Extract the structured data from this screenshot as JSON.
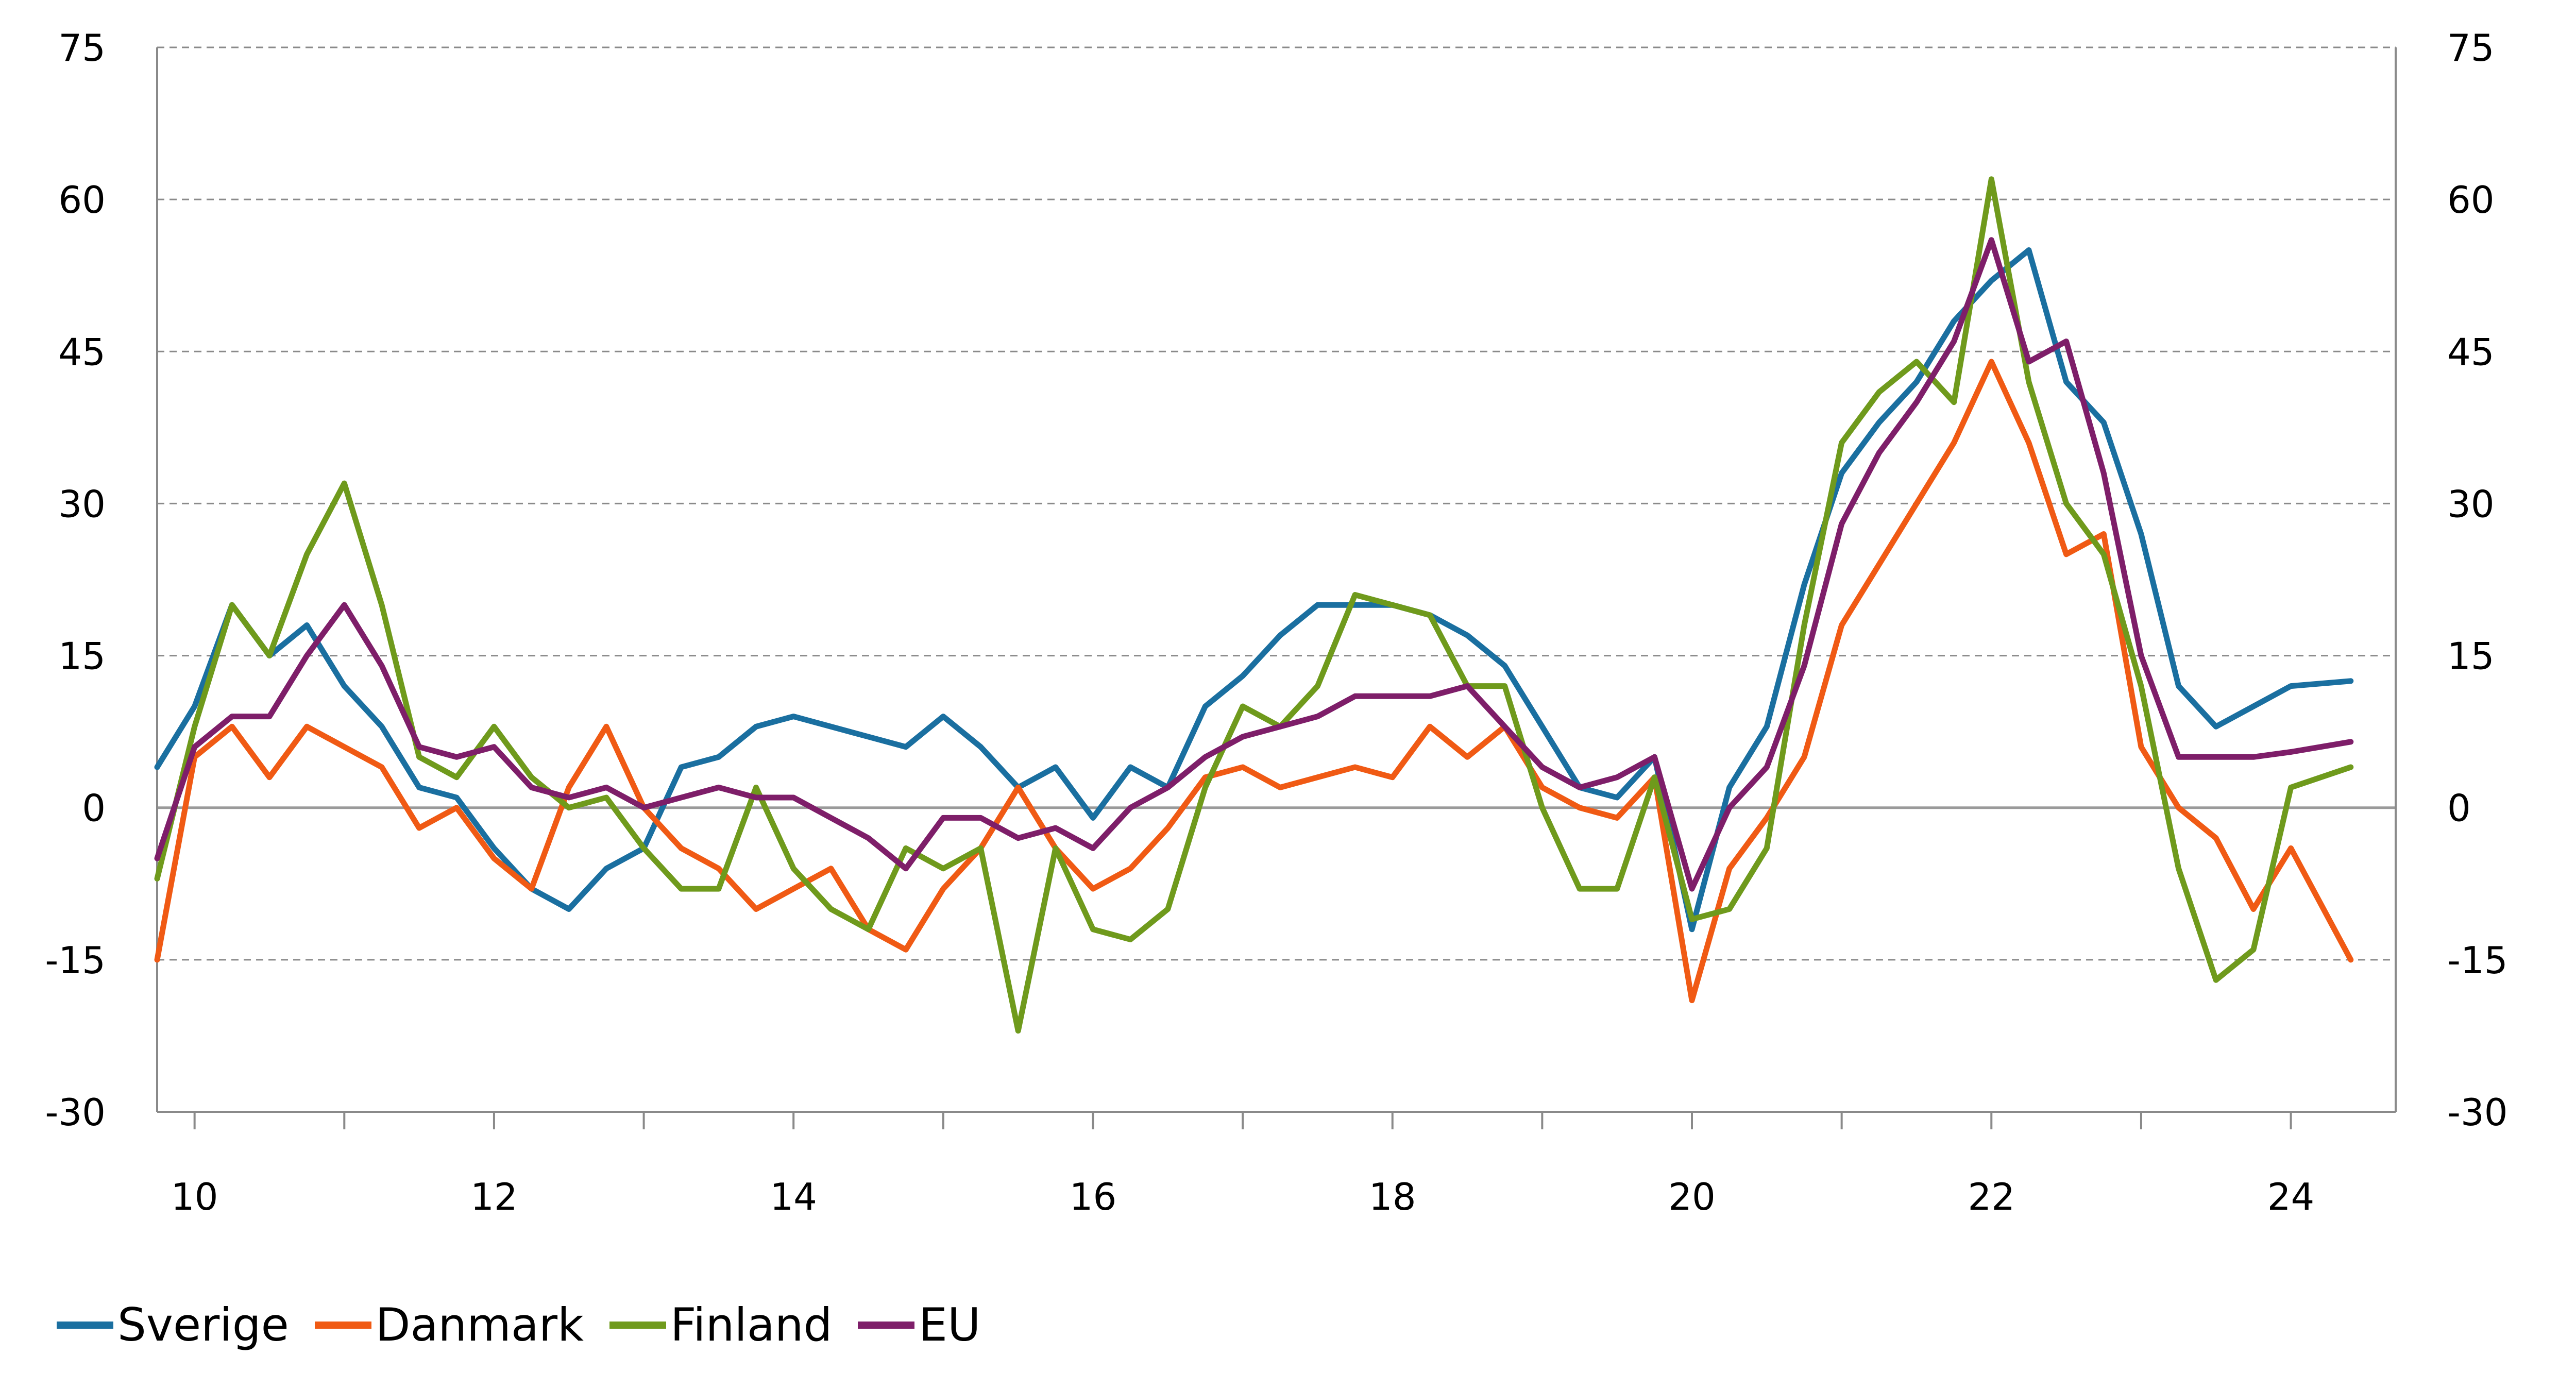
{
  "chart_data": {
    "type": "line",
    "title": "",
    "xlabel": "",
    "ylabel": "",
    "ylim": [
      -30,
      75
    ],
    "yticks": [
      -30,
      -15,
      0,
      15,
      30,
      45,
      60,
      75
    ],
    "xlim": [
      2009.75,
      2024.7
    ],
    "xticks": [
      2010,
      2012,
      2014,
      2016,
      2018,
      2020,
      2022,
      2024
    ],
    "xtick_labels": [
      "10",
      "12",
      "14",
      "16",
      "18",
      "20",
      "22",
      "24"
    ],
    "grid": "horizontal dashed",
    "legend_position": "bottom-left",
    "series": [
      {
        "name": "Sverige",
        "color": "#1a6fa0",
        "x": [
          2009.75,
          2010.0,
          2010.25,
          2010.5,
          2010.75,
          2011.0,
          2011.25,
          2011.5,
          2011.75,
          2012.0,
          2012.25,
          2012.5,
          2012.75,
          2013.0,
          2013.25,
          2013.5,
          2013.75,
          2014.0,
          2014.25,
          2014.5,
          2014.75,
          2015.0,
          2015.25,
          2015.5,
          2015.75,
          2016.0,
          2016.25,
          2016.5,
          2016.75,
          2017.0,
          2017.25,
          2017.5,
          2017.75,
          2018.0,
          2018.25,
          2018.5,
          2018.75,
          2019.0,
          2019.25,
          2019.5,
          2019.75,
          2020.0,
          2020.25,
          2020.5,
          2020.75,
          2021.0,
          2021.25,
          2021.5,
          2021.75,
          2022.0,
          2022.25,
          2022.5,
          2022.75,
          2023.0,
          2023.25,
          2023.5,
          2023.75,
          2024.0,
          2024.4
        ],
        "y": [
          4,
          10,
          20,
          15,
          18,
          12,
          8,
          2,
          1,
          -4,
          -8,
          -10,
          -6,
          -4,
          4,
          5,
          8,
          9,
          8,
          7,
          6,
          9,
          6,
          2,
          4,
          -1,
          4,
          2,
          10,
          13,
          17,
          20,
          20,
          20,
          19,
          17,
          14,
          8,
          2,
          1,
          5,
          -12,
          2,
          8,
          22,
          33,
          38,
          42,
          48,
          52,
          55,
          42,
          38,
          27,
          12,
          8,
          10,
          12,
          12.5
        ]
      },
      {
        "name": "Danmark",
        "color": "#f05a14",
        "x": [
          2009.75,
          2010.0,
          2010.25,
          2010.5,
          2010.75,
          2011.0,
          2011.25,
          2011.5,
          2011.75,
          2012.0,
          2012.25,
          2012.5,
          2012.75,
          2013.0,
          2013.25,
          2013.5,
          2013.75,
          2014.0,
          2014.25,
          2014.5,
          2014.75,
          2015.0,
          2015.25,
          2015.5,
          2015.75,
          2016.0,
          2016.25,
          2016.5,
          2016.75,
          2017.0,
          2017.25,
          2017.5,
          2017.75,
          2018.0,
          2018.25,
          2018.5,
          2018.75,
          2019.0,
          2019.25,
          2019.5,
          2019.75,
          2020.0,
          2020.25,
          2020.5,
          2020.75,
          2021.0,
          2021.25,
          2021.5,
          2021.75,
          2022.0,
          2022.25,
          2022.5,
          2022.75,
          2023.0,
          2023.25,
          2023.5,
          2023.75,
          2024.0,
          2024.4
        ],
        "y": [
          -15,
          5,
          8,
          3,
          8,
          6,
          4,
          -2,
          0,
          -5,
          -8,
          2,
          8,
          0,
          -4,
          -6,
          -10,
          -8,
          -6,
          -12,
          -14,
          -8,
          -4,
          2,
          -4,
          -8,
          -6,
          -2,
          3,
          4,
          2,
          3,
          4,
          3,
          8,
          5,
          8,
          2,
          0,
          -1,
          3,
          -19,
          -6,
          -1,
          5,
          18,
          24,
          30,
          36,
          44,
          36,
          25,
          27,
          6,
          0,
          -3,
          -10,
          -4,
          -15
        ]
      },
      {
        "name": "Finland",
        "color": "#6f9a1c",
        "x": [
          2009.75,
          2010.0,
          2010.25,
          2010.5,
          2010.75,
          2011.0,
          2011.25,
          2011.5,
          2011.75,
          2012.0,
          2012.25,
          2012.5,
          2012.75,
          2013.0,
          2013.25,
          2013.5,
          2013.75,
          2014.0,
          2014.25,
          2014.5,
          2014.75,
          2015.0,
          2015.25,
          2015.5,
          2015.75,
          2016.0,
          2016.25,
          2016.5,
          2016.75,
          2017.0,
          2017.25,
          2017.5,
          2017.75,
          2018.0,
          2018.25,
          2018.5,
          2018.75,
          2019.0,
          2019.25,
          2019.5,
          2019.75,
          2020.0,
          2020.25,
          2020.5,
          2020.75,
          2021.0,
          2021.25,
          2021.5,
          2021.75,
          2022.0,
          2022.25,
          2022.5,
          2022.75,
          2023.0,
          2023.25,
          2023.5,
          2023.75,
          2024.0,
          2024.4
        ],
        "y": [
          -7,
          8,
          20,
          15,
          25,
          32,
          20,
          5,
          3,
          8,
          3,
          0,
          1,
          -4,
          -8,
          -8,
          2,
          -6,
          -10,
          -12,
          -4,
          -6,
          -4,
          -22,
          -4,
          -12,
          -13,
          -10,
          2,
          10,
          8,
          12,
          21,
          20,
          19,
          12,
          12,
          0,
          -8,
          -8,
          3,
          -11,
          -10,
          -4,
          18,
          36,
          41,
          44,
          40,
          62,
          42,
          30,
          25,
          12,
          -6,
          -17,
          -14,
          2,
          4
        ]
      },
      {
        "name": "EU",
        "color": "#7e1e69",
        "x": [
          2009.75,
          2010.0,
          2010.25,
          2010.5,
          2010.75,
          2011.0,
          2011.25,
          2011.5,
          2011.75,
          2012.0,
          2012.25,
          2012.5,
          2012.75,
          2013.0,
          2013.25,
          2013.5,
          2013.75,
          2014.0,
          2014.25,
          2014.5,
          2014.75,
          2015.0,
          2015.25,
          2015.5,
          2015.75,
          2016.0,
          2016.25,
          2016.5,
          2016.75,
          2017.0,
          2017.25,
          2017.5,
          2017.75,
          2018.0,
          2018.25,
          2018.5,
          2018.75,
          2019.0,
          2019.25,
          2019.5,
          2019.75,
          2020.0,
          2020.25,
          2020.5,
          2020.75,
          2021.0,
          2021.25,
          2021.5,
          2021.75,
          2022.0,
          2022.25,
          2022.5,
          2022.75,
          2023.0,
          2023.25,
          2023.5,
          2023.75,
          2024.0,
          2024.4
        ],
        "y": [
          -5,
          6,
          9,
          9,
          15,
          20,
          14,
          6,
          5,
          6,
          2,
          1,
          2,
          0,
          1,
          2,
          1,
          1,
          -1,
          -3,
          -6,
          -1,
          -1,
          -3,
          -2,
          -4,
          0,
          2,
          5,
          7,
          8,
          9,
          11,
          11,
          11,
          12,
          8,
          4,
          2,
          3,
          5,
          -8,
          0,
          4,
          14,
          28,
          35,
          40,
          46,
          56,
          44,
          46,
          33,
          15,
          5,
          5,
          5,
          5.5,
          6.5
        ]
      }
    ]
  }
}
